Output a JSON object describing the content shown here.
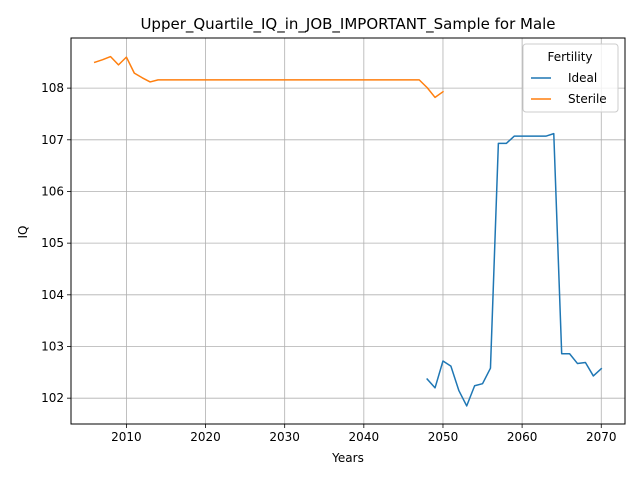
{
  "chart_data": {
    "type": "line",
    "title": "Upper_Quartile_IQ_in_JOB_IMPORTANT_Sample for Male",
    "xlabel": "Years",
    "ylabel": "IQ",
    "xlim": [
      2003,
      2073
    ],
    "ylim": [
      101.5,
      108.97
    ],
    "xticks": [
      2010,
      2020,
      2030,
      2040,
      2050,
      2060,
      2070
    ],
    "yticks": [
      102,
      103,
      104,
      105,
      106,
      107,
      108
    ],
    "grid": true,
    "legend": {
      "title": "Fertility",
      "placement": "top-right"
    },
    "series": [
      {
        "name": "Ideal",
        "color": "#1f77b4",
        "x": [
          2048,
          2049,
          2050,
          2051,
          2052,
          2053,
          2054,
          2055,
          2056,
          2057,
          2058,
          2059,
          2060,
          2061,
          2062,
          2063,
          2064,
          2065,
          2066,
          2067,
          2068,
          2069,
          2070
        ],
        "y": [
          102.37,
          102.2,
          102.72,
          102.62,
          102.15,
          101.85,
          102.24,
          102.28,
          102.58,
          106.93,
          106.93,
          107.07,
          107.07,
          107.07,
          107.07,
          107.07,
          107.12,
          102.86,
          102.86,
          102.67,
          102.69,
          102.43,
          102.57
        ]
      },
      {
        "name": "Sterile",
        "color": "#ff7f0e",
        "x": [
          2006,
          2007,
          2008,
          2009,
          2010,
          2011,
          2012,
          2013,
          2014,
          2015,
          2020,
          2025,
          2030,
          2035,
          2040,
          2045,
          2047,
          2048,
          2049,
          2050
        ],
        "y": [
          108.5,
          108.55,
          108.61,
          108.45,
          108.6,
          108.29,
          108.2,
          108.12,
          108.16,
          108.16,
          108.16,
          108.16,
          108.16,
          108.16,
          108.16,
          108.16,
          108.16,
          108.01,
          107.82,
          107.93
        ]
      }
    ]
  }
}
